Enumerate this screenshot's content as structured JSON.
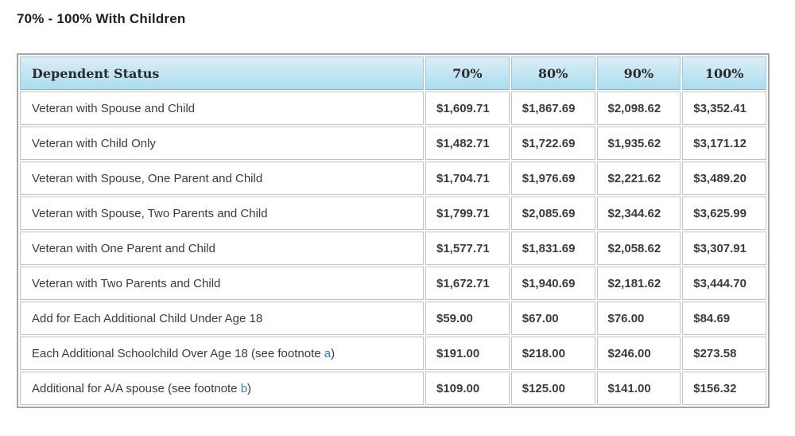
{
  "page": {
    "title": "70% - 100% With Children"
  },
  "colors": {
    "header_gradient_top": "#dceef6",
    "header_gradient_bottom": "#aaddef",
    "table_outer_border": "#a4a4a4",
    "cell_border": "#c3c3c3",
    "body_text": "#3b3b3b",
    "link_blue": "#2e7cbe"
  },
  "chart_data": {
    "type": "table",
    "title": "70% - 100% With Children",
    "columns": [
      "Dependent Status",
      "70%",
      "80%",
      "90%",
      "100%"
    ],
    "rows": [
      {
        "label": "Veteran with Spouse and Child",
        "values": [
          "$1,609.71",
          "$1,867.69",
          "$2,098.62",
          "$3,352.41"
        ]
      },
      {
        "label": "Veteran with Child Only",
        "values": [
          "$1,482.71",
          "$1,722.69",
          "$1,935.62",
          "$3,171.12"
        ]
      },
      {
        "label": "Veteran with Spouse, One Parent and Child",
        "values": [
          "$1,704.71",
          "$1,976.69",
          "$2,221.62",
          "$3,489.20"
        ]
      },
      {
        "label": "Veteran with Spouse, Two Parents and Child",
        "values": [
          "$1,799.71",
          "$2,085.69",
          "$2,344.62",
          "$3,625.99"
        ]
      },
      {
        "label": "Veteran with One Parent and Child",
        "values": [
          "$1,577.71",
          "$1,831.69",
          "$2,058.62",
          "$3,307.91"
        ]
      },
      {
        "label": "Veteran with Two Parents and Child",
        "values": [
          "$1,672.71",
          "$1,940.69",
          "$2,181.62",
          "$3,444.70"
        ]
      },
      {
        "label": "Add for Each Additional Child Under Age 18",
        "values": [
          "$59.00",
          "$67.00",
          "$76.00",
          "$84.69"
        ]
      },
      {
        "label_prefix": "Each Additional Schoolchild Over Age 18 (see footnote ",
        "footnote_link": "a",
        "label_suffix": ")",
        "values": [
          "$191.00",
          "$218.00",
          "$246.00",
          "$273.58"
        ]
      },
      {
        "label_prefix": "Additional for A/A spouse (see footnote ",
        "footnote_link": "b",
        "label_suffix": ")",
        "values": [
          "$109.00",
          "$125.00",
          "$141.00",
          "$156.32"
        ]
      }
    ]
  }
}
